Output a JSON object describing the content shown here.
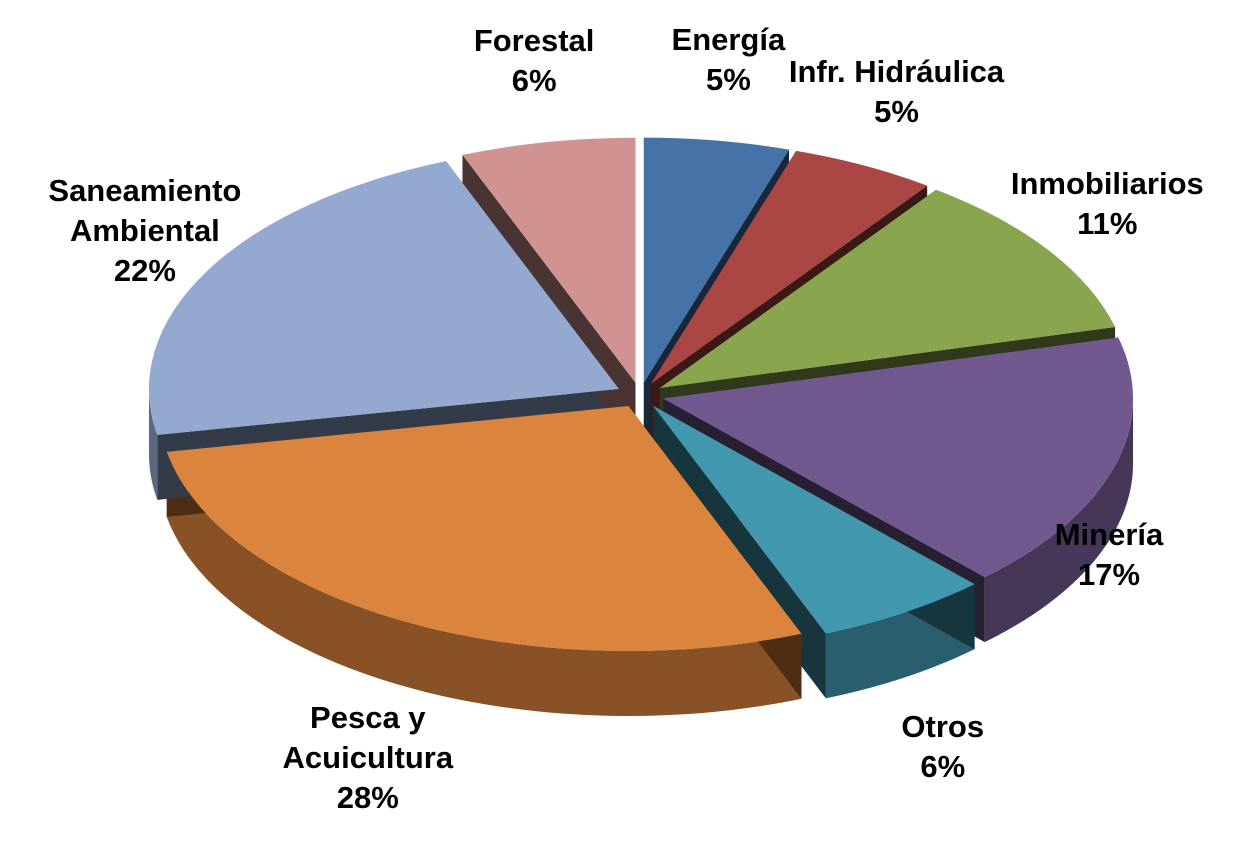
{
  "chart_data": {
    "type": "pie",
    "categories": [
      "Energía",
      "Infr. Hidráulica",
      "Inmobiliarios",
      "Minería",
      "Otros",
      "Pesca y Acuicultura",
      "Saneamiento Ambiental",
      "Forestal"
    ],
    "values": [
      5,
      5,
      11,
      17,
      6,
      28,
      22,
      6
    ],
    "value_labels": [
      "5%",
      "5%",
      "11%",
      "17%",
      "6%",
      "28%",
      "22%",
      "6%"
    ],
    "colors": [
      "#4572a7",
      "#aa4643",
      "#89a54e",
      "#71588f",
      "#4198af",
      "#db843d",
      "#93a9cf",
      "#d19392"
    ]
  }
}
